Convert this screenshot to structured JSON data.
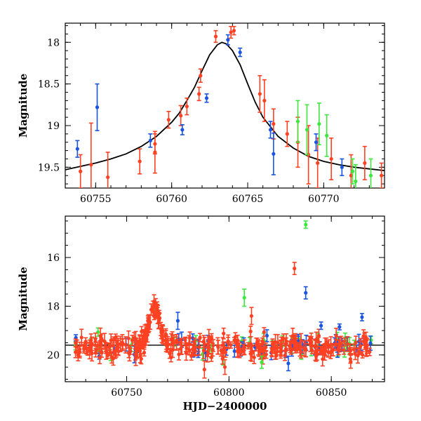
{
  "chart_data": [
    {
      "type": "scatter",
      "panel": "top",
      "xlabel": "",
      "ylabel": "Magnitude",
      "xlim": [
        60753,
        60774
      ],
      "ylim": [
        19.75,
        17.77
      ],
      "y_inverted": true,
      "xticks": [
        60755,
        60760,
        60765,
        60770
      ],
      "yticks": [
        18,
        18.5,
        19,
        19.5
      ],
      "colors": {
        "red": "#ff4022",
        "blue": "#1a54e0",
        "green": "#3ee63e",
        "model": "#000000"
      },
      "model_curve": {
        "name": "",
        "x": [
          60753,
          60754,
          60755,
          60756,
          60757,
          60758,
          60759,
          60760,
          60760.5,
          60761,
          60761.5,
          60762,
          60762.5,
          60763,
          60763.3,
          60763.6,
          60764,
          60764.5,
          60765,
          60765.5,
          60766,
          60767,
          60768,
          60769,
          60770,
          60771,
          60772,
          60773,
          60774
        ],
        "y": [
          19.53,
          19.49,
          19.45,
          19.4,
          19.34,
          19.25,
          19.13,
          18.96,
          18.85,
          18.7,
          18.54,
          18.34,
          18.15,
          18.03,
          18.0,
          18.02,
          18.1,
          18.27,
          18.5,
          18.72,
          18.9,
          19.13,
          19.27,
          19.37,
          19.43,
          19.47,
          19.5,
          19.52,
          19.54
        ]
      },
      "series": [
        {
          "name": "",
          "color": "red",
          "points": [
            [
              60754,
              19.55,
              0.2
            ],
            [
              60754.7,
              19.47,
              0.5
            ],
            [
              60755.8,
              19.62,
              0.3
            ],
            [
              60757.9,
              19.43,
              0.15
            ],
            [
              60758.9,
              19.32,
              0.25
            ],
            [
              60758.9,
              19.22,
              0.12
            ],
            [
              60759.8,
              18.93,
              0.1
            ],
            [
              60760.6,
              18.88,
              0.12
            ],
            [
              60761,
              18.77,
              0.1
            ],
            [
              60761.8,
              18.62,
              0.08
            ],
            [
              60761.9,
              18.4,
              0.08
            ],
            [
              60762.9,
              17.93,
              0.07
            ],
            [
              60763.9,
              17.88,
              0.07
            ],
            [
              60764.1,
              17.86,
              0.05
            ],
            [
              60765.8,
              18.62,
              0.22
            ],
            [
              60766.1,
              18.7,
              0.25
            ],
            [
              60766.7,
              18.98,
              0.18
            ],
            [
              60767.6,
              19.1,
              0.15
            ],
            [
              60768.3,
              19.2,
              0.3
            ],
            [
              60769,
              19.35,
              0.35
            ],
            [
              60769.6,
              19.45,
              0.3
            ],
            [
              60770.5,
              19.4,
              0.25
            ],
            [
              60771.8,
              19.6,
              0.25
            ],
            [
              60772.7,
              19.45,
              0.2
            ],
            [
              60773.8,
              19.6,
              0.15
            ]
          ]
        },
        {
          "name": "",
          "color": "blue",
          "points": [
            [
              60753.8,
              19.28,
              0.1
            ],
            [
              60755.1,
              18.78,
              0.28
            ],
            [
              60758.6,
              19.18,
              0.08
            ],
            [
              60760.7,
              19.05,
              0.06
            ],
            [
              60762.3,
              18.67,
              0.05
            ],
            [
              60763.7,
              17.97,
              0.06
            ],
            [
              60764.5,
              18.12,
              0.05
            ],
            [
              60766.5,
              19.05,
              0.1
            ],
            [
              60766.7,
              19.34,
              0.25
            ],
            [
              60769.5,
              19.2,
              0.1
            ],
            [
              60771.2,
              19.5,
              0.1
            ]
          ]
        },
        {
          "name": "",
          "color": "green",
          "points": [
            [
              60768.3,
              18.95,
              0.25
            ],
            [
              60768.9,
              19.05,
              0.3
            ],
            [
              60769.7,
              18.98,
              0.25
            ],
            [
              60770.2,
              19.12,
              0.25
            ],
            [
              60771.9,
              19.55,
              0.15
            ],
            [
              60772.1,
              19.67,
              0.2
            ],
            [
              60773.1,
              19.6,
              0.2
            ]
          ]
        }
      ]
    },
    {
      "type": "scatter",
      "panel": "bottom",
      "xlabel": "HJD−2400000",
      "ylabel": "Magnitude",
      "xlim": [
        60720,
        60876
      ],
      "ylim": [
        21.1,
        14.3
      ],
      "y_inverted": true,
      "xticks": [
        60750,
        60800,
        60850
      ],
      "yticks": [
        16,
        18,
        20
      ],
      "reference_line": {
        "y": 19.6
      },
      "generated_points": {
        "x_start": 60725,
        "x_end": 60870,
        "baseline": 19.65,
        "peak": {
          "x": 60763.5,
          "depth": 1.65,
          "width": 3.6
        },
        "red_count": 330,
        "blue_count": 50,
        "green_count": 35,
        "seed": 7
      },
      "outliers": [
        {
          "color": "green",
          "x": 60837.5,
          "y": 14.65,
          "err": 0.15
        },
        {
          "color": "red",
          "x": 60832,
          "y": 16.45,
          "err": 0.25
        },
        {
          "color": "blue",
          "x": 60837.5,
          "y": 17.45,
          "err": 0.25
        },
        {
          "color": "green",
          "x": 60807.5,
          "y": 17.65,
          "err": 0.35
        },
        {
          "color": "red",
          "x": 60811,
          "y": 18.4,
          "err": 0.35
        },
        {
          "color": "blue",
          "x": 60775,
          "y": 18.6,
          "err": 0.35
        },
        {
          "color": "blue",
          "x": 60865,
          "y": 18.45,
          "err": 0.15
        },
        {
          "color": "blue",
          "x": 60845,
          "y": 18.8,
          "err": 0.15
        },
        {
          "color": "blue",
          "x": 60854,
          "y": 18.85,
          "err": 0.12
        },
        {
          "color": "red",
          "x": 60788,
          "y": 20.6,
          "err": 0.35
        },
        {
          "color": "red",
          "x": 60798,
          "y": 20.5,
          "err": 0.3
        },
        {
          "color": "green",
          "x": 60816,
          "y": 20.3,
          "err": 0.25
        },
        {
          "color": "blue",
          "x": 60829,
          "y": 20.35,
          "err": 0.3
        }
      ]
    }
  ]
}
